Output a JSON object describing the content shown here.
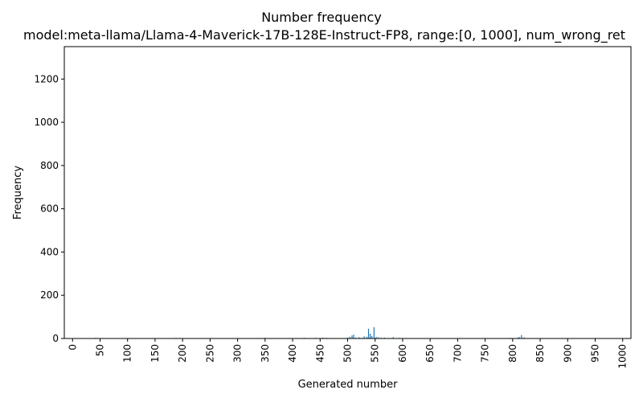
{
  "chart_data": {
    "type": "bar",
    "title": "Number frequency",
    "subtitle": "model:meta-llama/Llama-4-Maverick-17B-128E-Instruct-FP8, range:[0, 1000], num_wrong_ret",
    "xlabel": "Generated number",
    "ylabel": "Frequency",
    "xlim": [
      -15,
      1015
    ],
    "ylim": [
      0,
      1350
    ],
    "xticks": [
      "0",
      "50",
      "100",
      "150",
      "200",
      "250",
      "300",
      "350",
      "400",
      "450",
      "500",
      "550",
      "600",
      "650",
      "700",
      "750",
      "800",
      "850",
      "900",
      "950",
      "1000"
    ],
    "yticks": [
      "0",
      "200",
      "400",
      "600",
      "800",
      "1000",
      "1200"
    ],
    "grid": false,
    "color": "#1f77b4",
    "x": [
      5,
      42,
      47,
      103,
      147,
      188,
      196,
      245,
      301,
      338,
      349,
      366,
      421,
      442,
      448,
      455,
      462,
      470,
      499,
      504,
      508,
      511,
      515,
      521,
      526,
      530,
      535,
      538,
      541,
      544,
      548,
      552,
      556,
      561,
      567,
      574,
      583,
      594,
      606,
      655,
      703,
      747,
      796,
      809,
      812,
      816,
      821,
      855,
      890,
      951
    ],
    "values": [
      2,
      3,
      2,
      2,
      2,
      3,
      2,
      2,
      2,
      2,
      3,
      2,
      3,
      3,
      2,
      4,
      3,
      2,
      3,
      8,
      14,
      18,
      4,
      6,
      3,
      10,
      8,
      45,
      22,
      12,
      52,
      7,
      5,
      3,
      4,
      2,
      6,
      3,
      2,
      2,
      2,
      2,
      3,
      4,
      7,
      16,
      5,
      2,
      2,
      2
    ]
  }
}
